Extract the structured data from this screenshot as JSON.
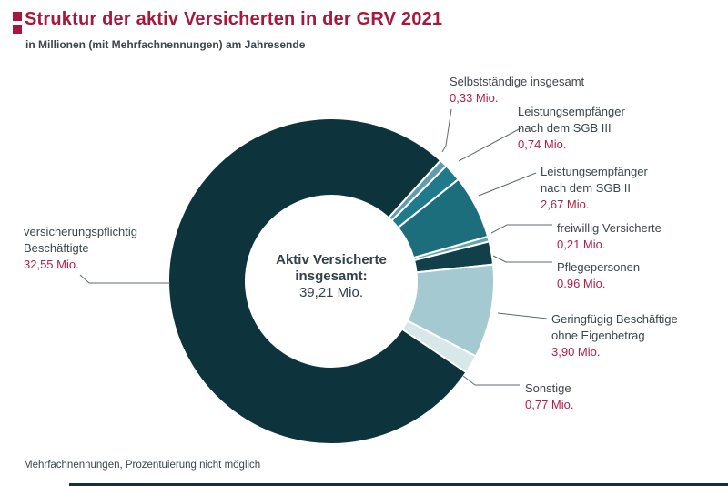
{
  "header": {
    "title": "Struktur der aktiv Versicherten in der GRV 2021",
    "subtitle": "in Millionen (mit Mehrfachnennungen) am Jahresende"
  },
  "footer": {
    "note": "Mehrfachnennungen, Prozentuierung nicht möglich"
  },
  "colors": {
    "accent_red": "#a6193c",
    "value_red": "#b31f46",
    "text_dark": "#3c464b",
    "leader_line": "#5f6a6e",
    "bottom_bar": "#0d343c",
    "segment_gap": "#ffffff"
  },
  "chart_data": {
    "type": "donut",
    "title": "Struktur der aktiv Versicherten in der GRV 2021",
    "subtitle": "in Millionen (mit Mehrfachnennungen) am Jahresende",
    "unit": "Mio.",
    "start_angle_deg": 124,
    "center_lines": [
      "Aktiv Versicherte",
      "insgesamt:",
      "39,21 Mio."
    ],
    "center_total": 39.21,
    "segments": [
      {
        "label": "versicherungspflichtig Beschäftigte",
        "name_lines": [
          "versicherungspflichtig",
          "Beschäftigte"
        ],
        "value": 32.55,
        "value_text": "32,55 Mio.",
        "color": "#0d343c"
      },
      {
        "label": "Selbstständige insgesamt",
        "name_lines": [
          "Selbstständige insgesamt"
        ],
        "value": 0.33,
        "value_text": "0,33 Mio.",
        "color": "#5e9dab"
      },
      {
        "label": "Leistungsempfänger nach dem SGB III",
        "name_lines": [
          "Leistungsempfänger",
          "nach dem SGB III"
        ],
        "value": 0.74,
        "value_text": "0,74 Mio.",
        "color": "#1f7b8b"
      },
      {
        "label": "Leistungsempfänger nach dem SGB II",
        "name_lines": [
          "Leistungsempfänger",
          "nach dem SGB II"
        ],
        "value": 2.67,
        "value_text": "2,67 Mio.",
        "color": "#1d6e7d"
      },
      {
        "label": "freiwillig Versicherte",
        "name_lines": [
          "freiwillig Versicherte"
        ],
        "value": 0.21,
        "value_text": "0,21 Mio.",
        "color": "#68a3b0"
      },
      {
        "label": "Pflegepersonen",
        "name_lines": [
          "Pflegepersonen"
        ],
        "value": 0.96,
        "value_text": "0.96 Mio.",
        "color": "#11404b"
      },
      {
        "label": "Geringfügig Beschäftige ohne Eigenbetrag",
        "name_lines": [
          "Geringfügig Beschäftige",
          "ohne Eigenbetrag"
        ],
        "value": 3.9,
        "value_text": "3,90 Mio.",
        "color": "#a5c9d0"
      },
      {
        "label": "Sonstige",
        "name_lines": [
          "Sonstige"
        ],
        "value": 0.77,
        "value_text": "0,77 Mio.",
        "color": "#d8e8ea"
      }
    ]
  }
}
